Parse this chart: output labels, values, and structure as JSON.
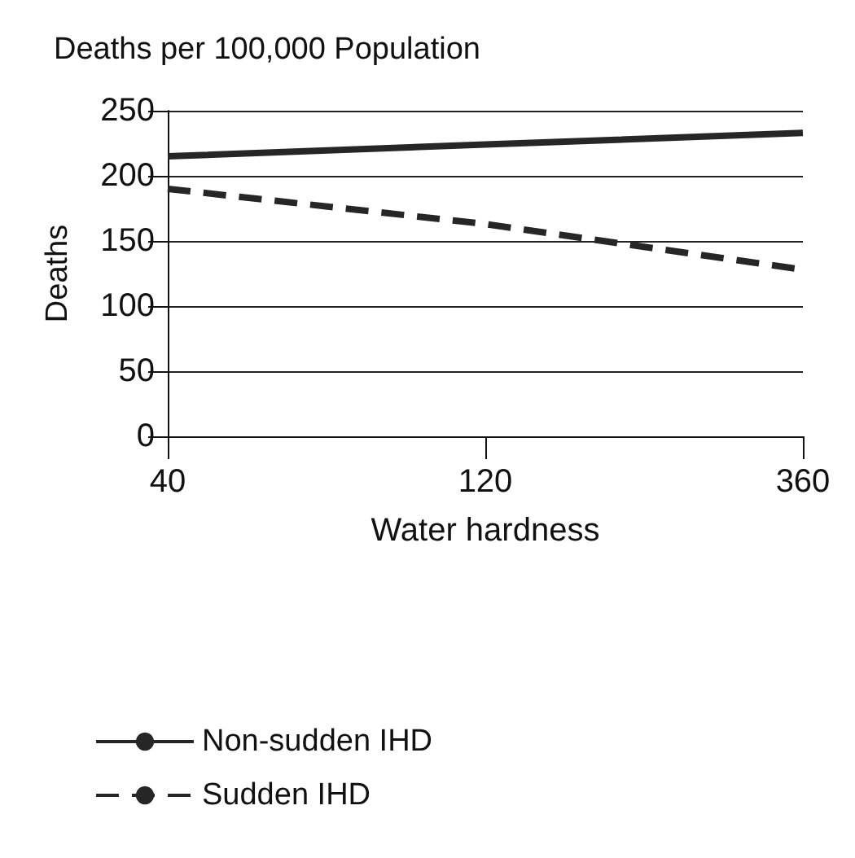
{
  "chart_data": {
    "type": "line",
    "title": "Deaths per 100,000 Population",
    "xlabel": "Water hardness",
    "ylabel": "Deaths",
    "categories": [
      "40",
      "120",
      "360"
    ],
    "series": [
      {
        "name": "Non-sudden IHD",
        "color": "#262626",
        "line_style": "solid",
        "values": [
          215,
          224,
          233
        ]
      },
      {
        "name": "Sudden IHD",
        "color": "#262626",
        "line_style": "dashed",
        "values": [
          190,
          163,
          128
        ]
      }
    ],
    "ylim": [
      0,
      250
    ],
    "yticks": [
      0,
      50,
      100,
      150,
      200,
      250
    ],
    "grid": "y",
    "legend": "bottom",
    "marker": "none"
  }
}
